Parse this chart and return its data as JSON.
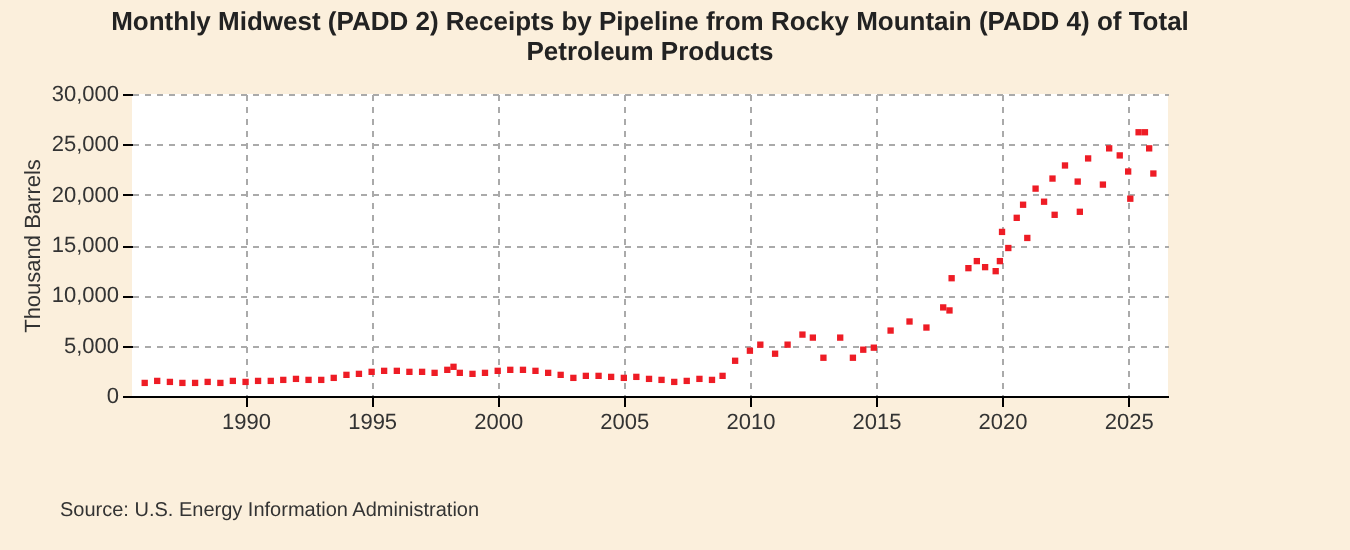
{
  "chart_data": {
    "type": "scatter",
    "title": "Monthly Midwest (PADD 2) Receipts by Pipeline from Rocky Mountain (PADD 4) of Total Petroleum Products",
    "ylabel": "Thousand Barrels",
    "annotations": [
      "Source: U.S. Energy Information Administration"
    ],
    "x": [
      "1986-01",
      "1986-07",
      "1987-01",
      "1987-07",
      "1988-01",
      "1988-07",
      "1989-01",
      "1989-07",
      "1990-01",
      "1990-07",
      "1991-01",
      "1991-07",
      "1992-01",
      "1992-07",
      "1993-01",
      "1993-07",
      "1994-01",
      "1994-07",
      "1995-01",
      "1995-07",
      "1996-01",
      "1996-07",
      "1997-01",
      "1997-07",
      "1998-01",
      "1998-04",
      "1998-07",
      "1999-01",
      "1999-07",
      "2000-01",
      "2000-07",
      "2001-01",
      "2001-07",
      "2002-01",
      "2002-07",
      "2003-01",
      "2003-07",
      "2004-01",
      "2004-07",
      "2005-01",
      "2005-07",
      "2006-01",
      "2006-07",
      "2007-01",
      "2007-07",
      "2008-01",
      "2008-07",
      "2008-12",
      "2009-06",
      "2010-01",
      "2010-06",
      "2011-01",
      "2011-07",
      "2012-02",
      "2012-07",
      "2012-12",
      "2013-08",
      "2014-02",
      "2014-07",
      "2014-12",
      "2015-08",
      "2016-05",
      "2017-01",
      "2017-09",
      "2017-12",
      "2018-01",
      "2018-09",
      "2019-01",
      "2019-05",
      "2019-10",
      "2019-12",
      "2020-01",
      "2020-04",
      "2020-08",
      "2020-11",
      "2021-01",
      "2021-05",
      "2021-09",
      "2022-01",
      "2022-02",
      "2022-07",
      "2023-01",
      "2023-02",
      "2023-06",
      "2024-01",
      "2024-04",
      "2024-09",
      "2025-01",
      "2025-02",
      "2025-06",
      "2025-09",
      "2025-11",
      "2026-01"
    ],
    "values": [
      1300,
      1500,
      1400,
      1300,
      1300,
      1400,
      1300,
      1500,
      1400,
      1500,
      1500,
      1600,
      1700,
      1600,
      1600,
      1800,
      2100,
      2200,
      2400,
      2500,
      2500,
      2400,
      2400,
      2300,
      2600,
      2900,
      2300,
      2200,
      2300,
      2500,
      2600,
      2600,
      2500,
      2300,
      2100,
      1800,
      2000,
      2000,
      1900,
      1800,
      1900,
      1700,
      1600,
      1400,
      1500,
      1700,
      1600,
      2000,
      3500,
      4500,
      5100,
      4200,
      5100,
      6100,
      5800,
      3800,
      5800,
      3800,
      4600,
      4800,
      6500,
      7400,
      6800,
      8800,
      8500,
      11700,
      12700,
      13400,
      12800,
      12400,
      13400,
      16300,
      14700,
      17700,
      19000,
      15700,
      20600,
      19300,
      21600,
      18000,
      22900,
      21300,
      18300,
      23600,
      21000,
      24600,
      23900,
      22300,
      19600,
      26200,
      26200,
      24600,
      22100
    ],
    "color": "#ee1c25",
    "marker": "square",
    "xlim": [
      "1985-07",
      "2026-08"
    ],
    "xticks": [
      "1990",
      "1995",
      "2000",
      "2005",
      "2010",
      "2015",
      "2020",
      "2025"
    ],
    "ylim": [
      0,
      30000
    ],
    "yticks": [
      0,
      {
        "value": 5000,
        "label": "5,000"
      },
      {
        "value": 10000,
        "label": "10,000"
      },
      {
        "value": 15000,
        "label": "15,000"
      },
      {
        "value": 20000,
        "label": "20,000"
      },
      {
        "value": 25000,
        "label": "25,000"
      },
      {
        "value": 30000,
        "label": "30,000"
      }
    ],
    "grid": true
  }
}
